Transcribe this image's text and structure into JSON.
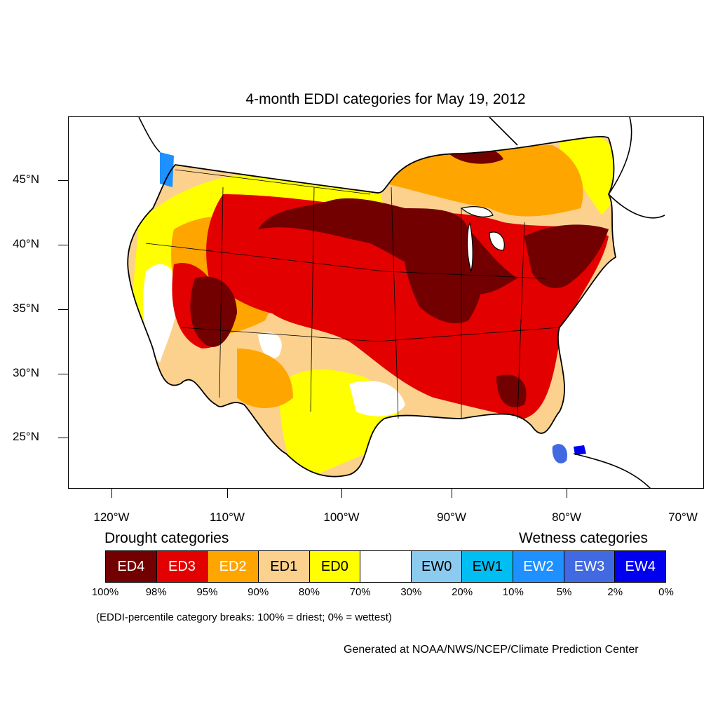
{
  "title": "4-month EDDI categories for May 19, 2012",
  "axes": {
    "y_labels": [
      "45°N",
      "40°N",
      "35°N",
      "30°N",
      "25°N"
    ],
    "x_labels": [
      "120°W",
      "110°W",
      "100°W",
      "90°W",
      "80°W",
      "70°W"
    ]
  },
  "legend": {
    "drought_heading": "Drought categories",
    "wetness_heading": "Wetness categories",
    "categories": [
      {
        "label": "ED4",
        "color": "#720000",
        "text_color": "#ffffff"
      },
      {
        "label": "ED3",
        "color": "#e20000",
        "text_color": "#ffffff"
      },
      {
        "label": "ED2",
        "color": "#ffa500",
        "text_color": "#ffffff"
      },
      {
        "label": "ED1",
        "color": "#fcd18d",
        "text_color": "#000000"
      },
      {
        "label": "ED0",
        "color": "#ffff00",
        "text_color": "#000000"
      },
      {
        "label": "",
        "color": "#ffffff",
        "text_color": "#000000"
      },
      {
        "label": "EW0",
        "color": "#8ccbf0",
        "text_color": "#000000"
      },
      {
        "label": "EW1",
        "color": "#00bdf2",
        "text_color": "#000000"
      },
      {
        "label": "EW2",
        "color": "#1e90ff",
        "text_color": "#ffffff"
      },
      {
        "label": "EW3",
        "color": "#4169e1",
        "text_color": "#ffffff"
      },
      {
        "label": "EW4",
        "color": "#0000ee",
        "text_color": "#ffffff"
      }
    ],
    "breaks": [
      "100%",
      "98%",
      "95%",
      "90%",
      "80%",
      "70%",
      "30%",
      "20%",
      "10%",
      "5%",
      "2%",
      "0%"
    ]
  },
  "note": "(EDDI-percentile category breaks: 100% = driest; 0% = wettest)",
  "credit": "Generated at NOAA/NWS/NCEP/Climate Prediction Center"
}
